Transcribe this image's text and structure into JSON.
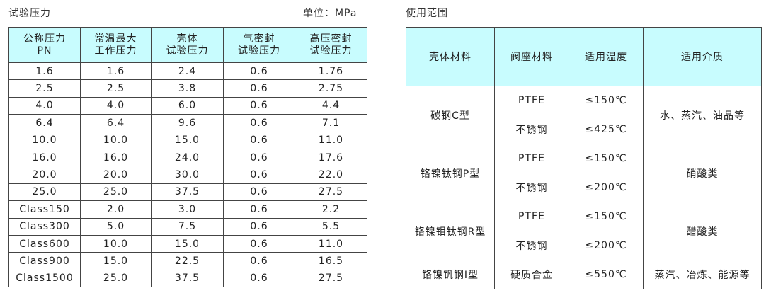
{
  "test_pressure": {
    "title": "试验压力",
    "unit": "单位：MPa",
    "headers": [
      [
        "公称压力",
        "PN"
      ],
      [
        "常温最大",
        "工作压力"
      ],
      [
        "壳体",
        "试验压力"
      ],
      [
        "气密封",
        "试验压力"
      ],
      [
        "高压密封",
        "试验压力"
      ]
    ],
    "rows": [
      [
        "1.6",
        "1.6",
        "2.4",
        "0.6",
        "1.76"
      ],
      [
        "2.5",
        "2.5",
        "3.8",
        "0.6",
        "2.75"
      ],
      [
        "4.0",
        "4.0",
        "6.0",
        "0.6",
        "4.4"
      ],
      [
        "6.4",
        "6.4",
        "9.6",
        "0.6",
        "7.1"
      ],
      [
        "10.0",
        "10.0",
        "15.0",
        "0.6",
        "11.0"
      ],
      [
        "16.0",
        "16.0",
        "24.0",
        "0.6",
        "17.6"
      ],
      [
        "20.0",
        "20.0",
        "30.0",
        "0.6",
        "22.0"
      ],
      [
        "25.0",
        "25.0",
        "37.5",
        "0.6",
        "27.5"
      ],
      [
        "Class150",
        "2.0",
        "3.0",
        "0.6",
        "2.2"
      ],
      [
        "Class300",
        "5.0",
        "7.5",
        "0.6",
        "5.5"
      ],
      [
        "Class600",
        "10.0",
        "15.0",
        "0.6",
        "11.0"
      ],
      [
        "Class900",
        "15.0",
        "22.5",
        "0.6",
        "16.5"
      ],
      [
        "Class1500",
        "25.0",
        "37.5",
        "0.6",
        "27.5"
      ]
    ]
  },
  "usage_range": {
    "title": "使用范围",
    "headers": [
      "壳体材料",
      "阀座材料",
      "适用温度",
      "适用介质"
    ],
    "groups": [
      {
        "body": "碳钢C型",
        "medium": "水、蒸汽、油品等",
        "rows": [
          {
            "seat": "PTFE",
            "temp": "≤150℃"
          },
          {
            "seat": "不锈钢",
            "temp": "≤425℃"
          }
        ]
      },
      {
        "body": "铬镍钛钢P型",
        "medium": "硝酸类",
        "rows": [
          {
            "seat": "PTFE",
            "temp": "≤150℃"
          },
          {
            "seat": "不锈钢",
            "temp": "≤200℃"
          }
        ]
      },
      {
        "body": "铬镍钼钛钢R型",
        "medium": "醋酸类",
        "rows": [
          {
            "seat": "PTFE",
            "temp": "≤150℃"
          },
          {
            "seat": "不锈钢",
            "temp": "≤200℃"
          }
        ]
      },
      {
        "body": "铬镍钒钢I型",
        "medium": "蒸汽、冶炼、能源等",
        "rows": [
          {
            "seat": "硬质合金",
            "temp": "≤550℃"
          }
        ]
      }
    ]
  },
  "colors": {
    "header_bg": "#c8fcfe",
    "border": "#444444"
  }
}
